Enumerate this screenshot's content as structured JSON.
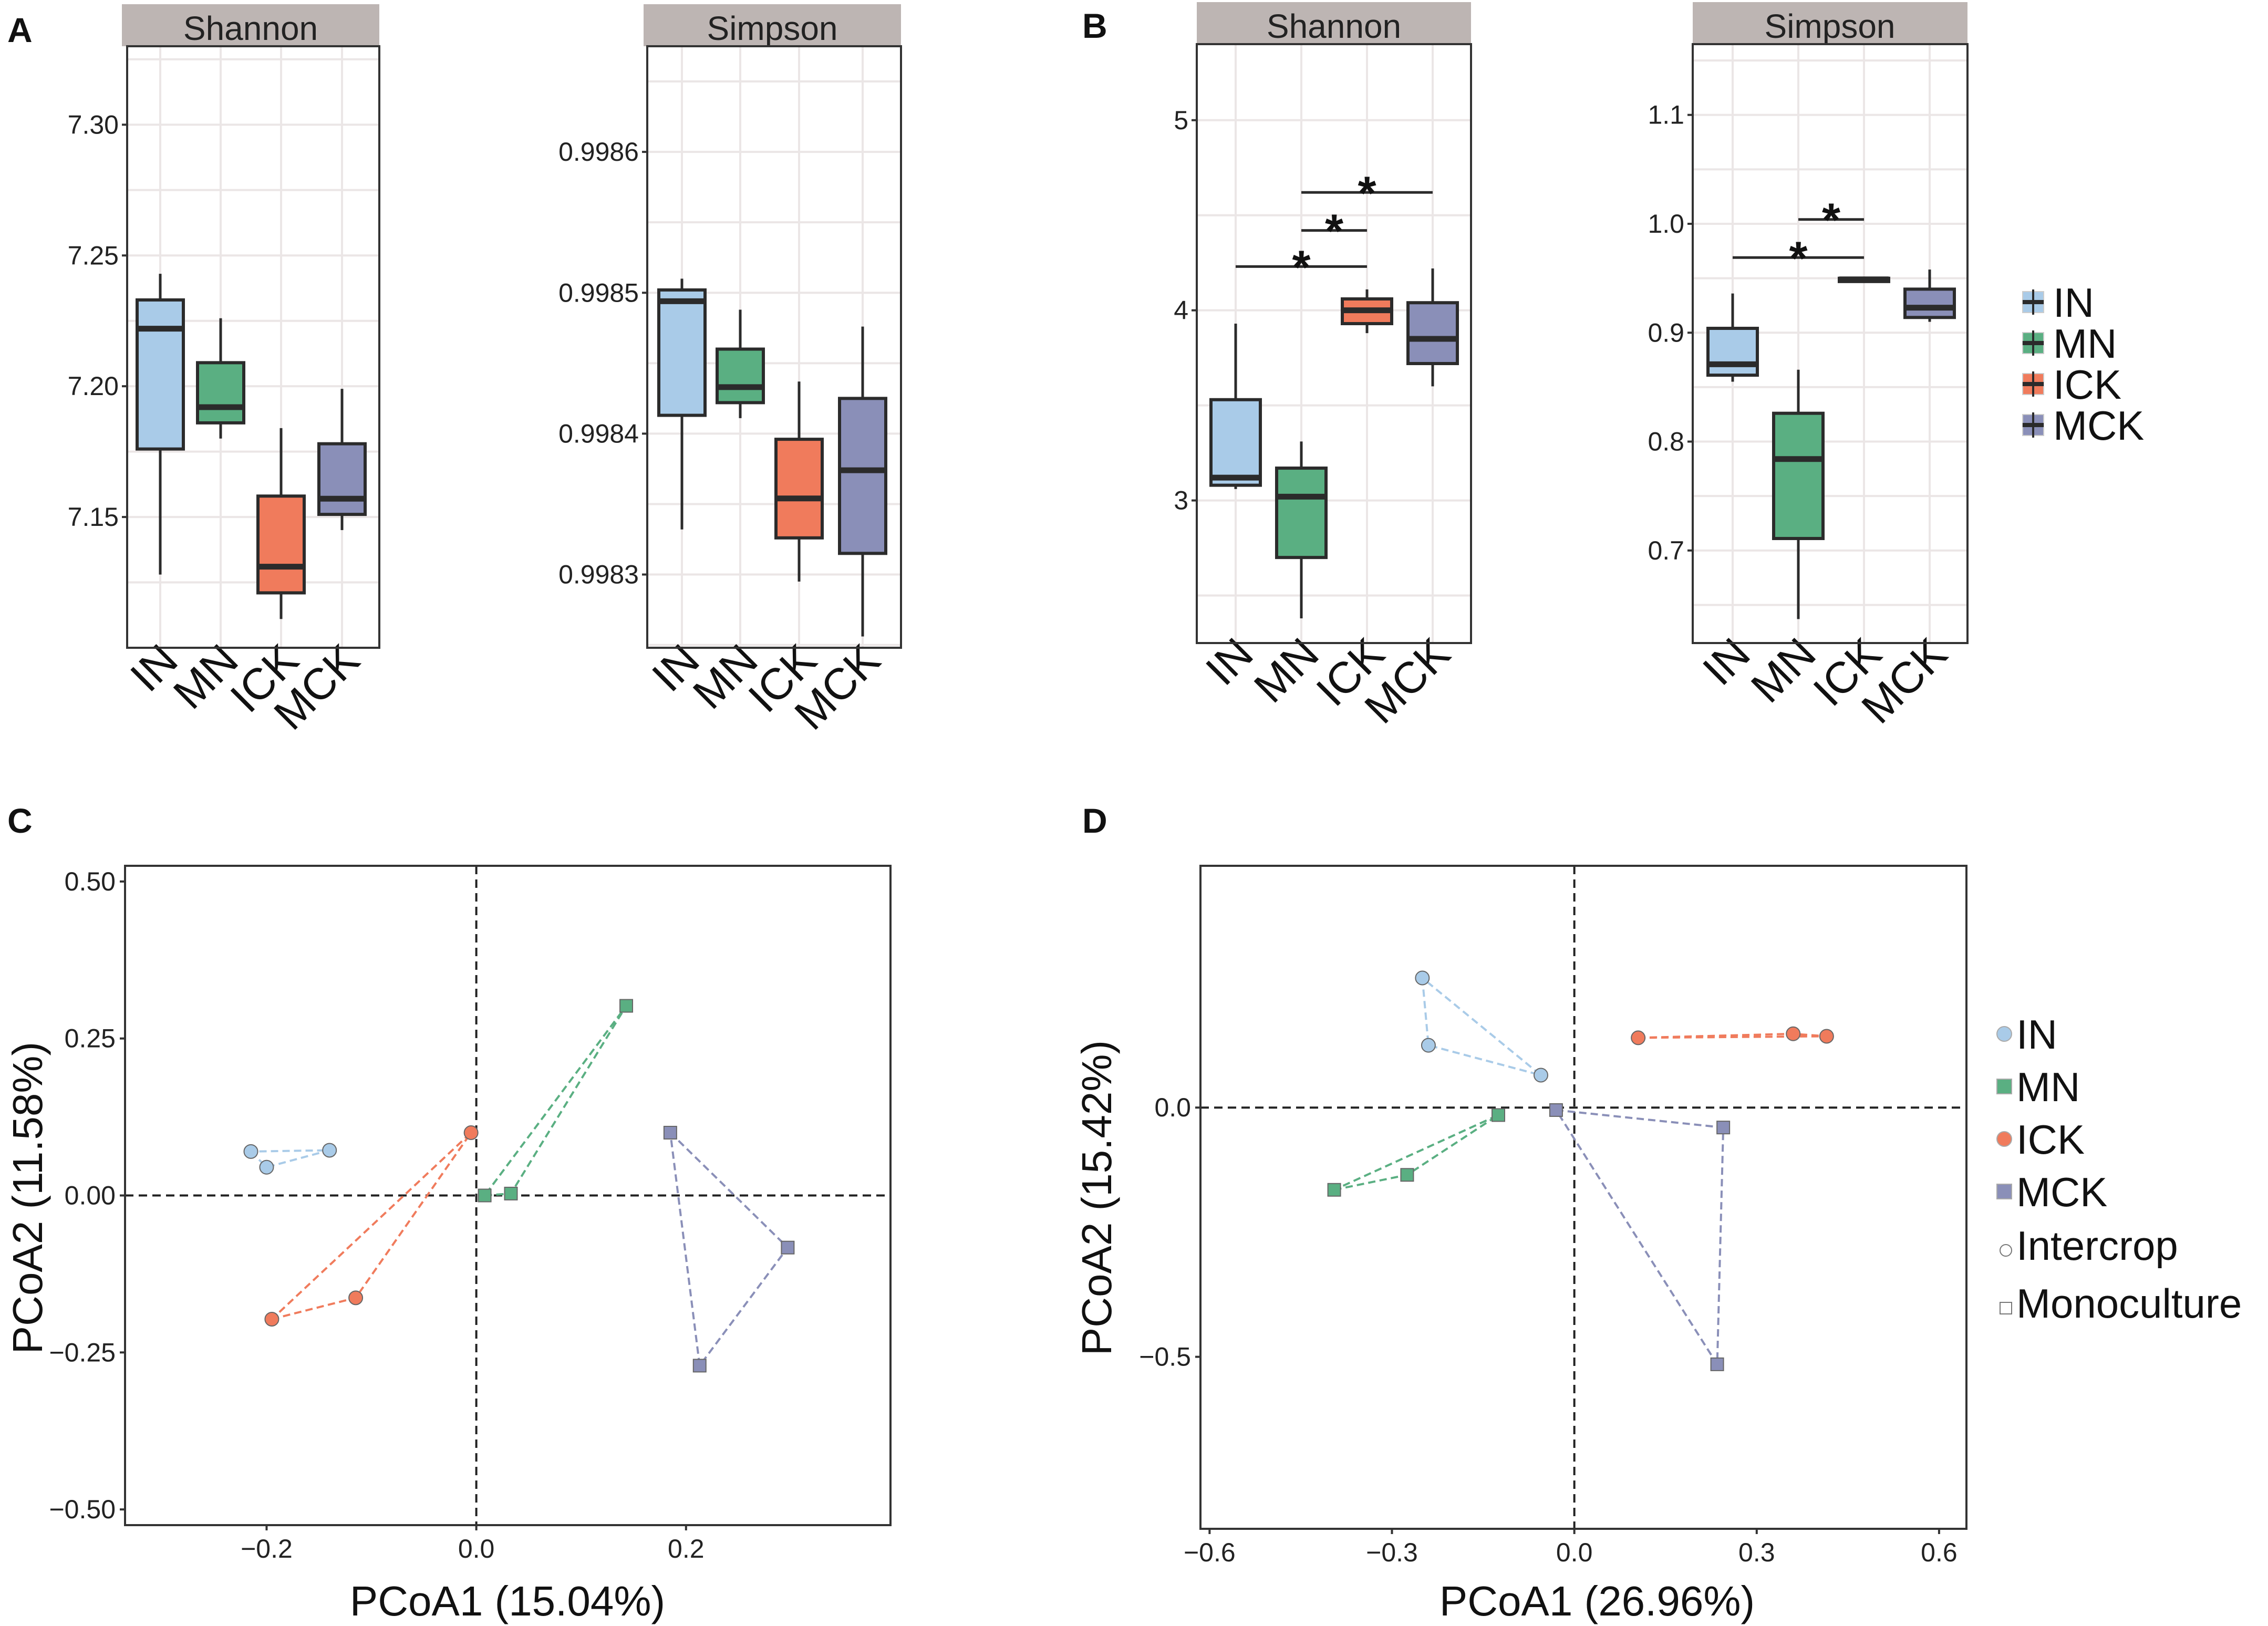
{
  "panel_labels": [
    "A",
    "B",
    "C",
    "D"
  ],
  "colors": {
    "IN": "#a9cbe8",
    "MN": "#5aaf82",
    "ICK": "#f07b5c",
    "MCK": "#8a8fb8"
  },
  "chart_data": [
    {
      "id": "A-shannon",
      "type": "box",
      "panel": "A",
      "title": "Shannon",
      "categories": [
        "IN",
        "MN",
        "ICK",
        "MCK"
      ],
      "ylim": [
        7.1,
        7.33
      ],
      "ticks": [
        7.15,
        7.2,
        7.25,
        7.3
      ],
      "tick_labels": [
        "7.15",
        "7.20",
        "7.25",
        "7.30"
      ],
      "boxes": [
        {
          "min": 7.128,
          "q1": 7.176,
          "median": 7.222,
          "q3": 7.233,
          "max": 7.243
        },
        {
          "min": 7.18,
          "q1": 7.186,
          "median": 7.192,
          "q3": 7.209,
          "max": 7.226
        },
        {
          "min": 7.111,
          "q1": 7.121,
          "median": 7.131,
          "q3": 7.158,
          "max": 7.184
        },
        {
          "min": 7.145,
          "q1": 7.151,
          "median": 7.157,
          "q3": 7.178,
          "max": 7.199
        }
      ],
      "significance": []
    },
    {
      "id": "A-simpson",
      "type": "box",
      "panel": "A",
      "title": "Simpson",
      "categories": [
        "IN",
        "MN",
        "ICK",
        "MCK"
      ],
      "ylim": [
        0.998248,
        0.998675
      ],
      "ticks": [
        0.9983,
        0.9984,
        0.9985,
        0.9986
      ],
      "tick_labels": [
        "0.9983",
        "0.9984",
        "0.9985",
        "0.9986"
      ],
      "boxes": [
        {
          "min": 0.998332,
          "q1": 0.998413,
          "median": 0.998494,
          "q3": 0.998502,
          "max": 0.99851
        },
        {
          "min": 0.998411,
          "q1": 0.998422,
          "median": 0.998433,
          "q3": 0.99846,
          "max": 0.998488
        },
        {
          "min": 0.998295,
          "q1": 0.998326,
          "median": 0.998354,
          "q3": 0.998396,
          "max": 0.998437
        },
        {
          "min": 0.998256,
          "q1": 0.998315,
          "median": 0.998374,
          "q3": 0.998425,
          "max": 0.998476
        }
      ],
      "significance": []
    },
    {
      "id": "B-shannon",
      "type": "box",
      "panel": "B",
      "title": "Shannon",
      "categories": [
        "IN",
        "MN",
        "ICK",
        "MCK"
      ],
      "ylim": [
        2.25,
        5.4
      ],
      "ticks": [
        3,
        4,
        5
      ],
      "tick_labels": [
        "3",
        "4",
        "5"
      ],
      "boxes": [
        {
          "min": 3.06,
          "q1": 3.08,
          "median": 3.12,
          "q3": 3.53,
          "max": 3.93
        },
        {
          "min": 2.38,
          "q1": 2.7,
          "median": 3.02,
          "q3": 3.17,
          "max": 3.31
        },
        {
          "min": 3.88,
          "q1": 3.93,
          "median": 4.0,
          "q3": 4.06,
          "max": 4.11
        },
        {
          "min": 3.6,
          "q1": 3.72,
          "median": 3.85,
          "q3": 4.04,
          "max": 4.22
        }
      ],
      "significance": [
        {
          "from": 0,
          "to": 2,
          "y": 4.23,
          "label": "*"
        },
        {
          "from": 1,
          "to": 2,
          "y": 4.42,
          "label": "*"
        },
        {
          "from": 1,
          "to": 3,
          "y": 4.62,
          "label": "*"
        }
      ]
    },
    {
      "id": "B-simpson",
      "type": "box",
      "panel": "B",
      "title": "Simpson",
      "categories": [
        "IN",
        "MN",
        "ICK",
        "MCK"
      ],
      "ylim": [
        0.615,
        1.165
      ],
      "ticks": [
        0.7,
        0.8,
        0.9,
        1.0,
        1.1
      ],
      "tick_labels": [
        "0.7",
        "0.8",
        "0.9",
        "1.0",
        "1.1"
      ],
      "boxes": [
        {
          "min": 0.855,
          "q1": 0.861,
          "median": 0.871,
          "q3": 0.904,
          "max": 0.936
        },
        {
          "min": 0.637,
          "q1": 0.711,
          "median": 0.784,
          "q3": 0.826,
          "max": 0.866
        },
        {
          "min": 0.946,
          "q1": 0.947,
          "median": 0.949,
          "q3": 0.95,
          "max": 0.951
        },
        {
          "min": 0.91,
          "q1": 0.914,
          "median": 0.923,
          "q3": 0.94,
          "max": 0.958
        }
      ],
      "significance": [
        {
          "from": 0,
          "to": 2,
          "y": 0.969,
          "label": "*"
        },
        {
          "from": 1,
          "to": 2,
          "y": 1.004,
          "label": "*"
        }
      ]
    },
    {
      "id": "C",
      "type": "scatter",
      "panel": "C",
      "xlabel": "PCoA1 (15.04%)",
      "ylabel": "PCoA2 (11.58%)",
      "xlim": [
        -0.335,
        0.395
      ],
      "ylim": [
        -0.525,
        0.525
      ],
      "xticks": [
        -0.2,
        0.0,
        0.2
      ],
      "xtick_labels": [
        "−0.2",
        "0.0",
        "0.2"
      ],
      "yticks": [
        -0.5,
        -0.25,
        0.0,
        0.25,
        0.5
      ],
      "ytick_labels": [
        "−0.50",
        "−0.25",
        "0.00",
        "0.25",
        "0.50"
      ],
      "series": [
        {
          "name": "IN",
          "shape": "circle",
          "points": [
            [
              -0.215,
              0.07
            ],
            [
              -0.2,
              0.045
            ],
            [
              -0.14,
              0.072
            ]
          ]
        },
        {
          "name": "MN",
          "shape": "square",
          "points": [
            [
              0.008,
              0.0
            ],
            [
              0.033,
              0.003
            ],
            [
              0.143,
              0.302
            ]
          ]
        },
        {
          "name": "ICK",
          "shape": "circle",
          "points": [
            [
              -0.195,
              -0.197
            ],
            [
              -0.115,
              -0.163
            ],
            [
              -0.005,
              0.1
            ]
          ]
        },
        {
          "name": "MCK",
          "shape": "square",
          "points": [
            [
              0.185,
              0.1
            ],
            [
              0.297,
              -0.083
            ],
            [
              0.213,
              -0.271
            ]
          ]
        }
      ]
    },
    {
      "id": "D",
      "type": "scatter",
      "panel": "D",
      "xlabel": "PCoA1 (26.96%)",
      "ylabel": "PCoA2 (15.42%)",
      "xlim": [
        -0.615,
        0.645
      ],
      "ylim": [
        -0.845,
        0.485
      ],
      "xticks": [
        -0.6,
        -0.3,
        0.0,
        0.3,
        0.6
      ],
      "xtick_labels": [
        "−0.6",
        "−0.3",
        "0.0",
        "0.3",
        "0.6"
      ],
      "yticks": [
        -0.5,
        0.0
      ],
      "ytick_labels": [
        "−0.5",
        "0.0"
      ],
      "series": [
        {
          "name": "IN",
          "shape": "circle",
          "points": [
            [
              -0.25,
              0.26
            ],
            [
              -0.24,
              0.125
            ],
            [
              -0.055,
              0.065
            ]
          ]
        },
        {
          "name": "MN",
          "shape": "square",
          "points": [
            [
              -0.395,
              -0.165
            ],
            [
              -0.275,
              -0.135
            ],
            [
              -0.125,
              -0.015
            ]
          ]
        },
        {
          "name": "ICK",
          "shape": "circle",
          "points": [
            [
              0.105,
              0.14
            ],
            [
              0.36,
              0.148
            ],
            [
              0.415,
              0.143
            ]
          ]
        },
        {
          "name": "MCK",
          "shape": "square",
          "points": [
            [
              -0.03,
              -0.005
            ],
            [
              0.245,
              -0.04
            ],
            [
              0.235,
              -0.515
            ]
          ]
        }
      ]
    }
  ],
  "legend_B": [
    "IN",
    "MN",
    "ICK",
    "MCK"
  ],
  "legend_D": {
    "groups": [
      "IN",
      "MN",
      "ICK",
      "MCK"
    ],
    "shapes": [
      "Intercrop",
      "Monoculture"
    ]
  }
}
